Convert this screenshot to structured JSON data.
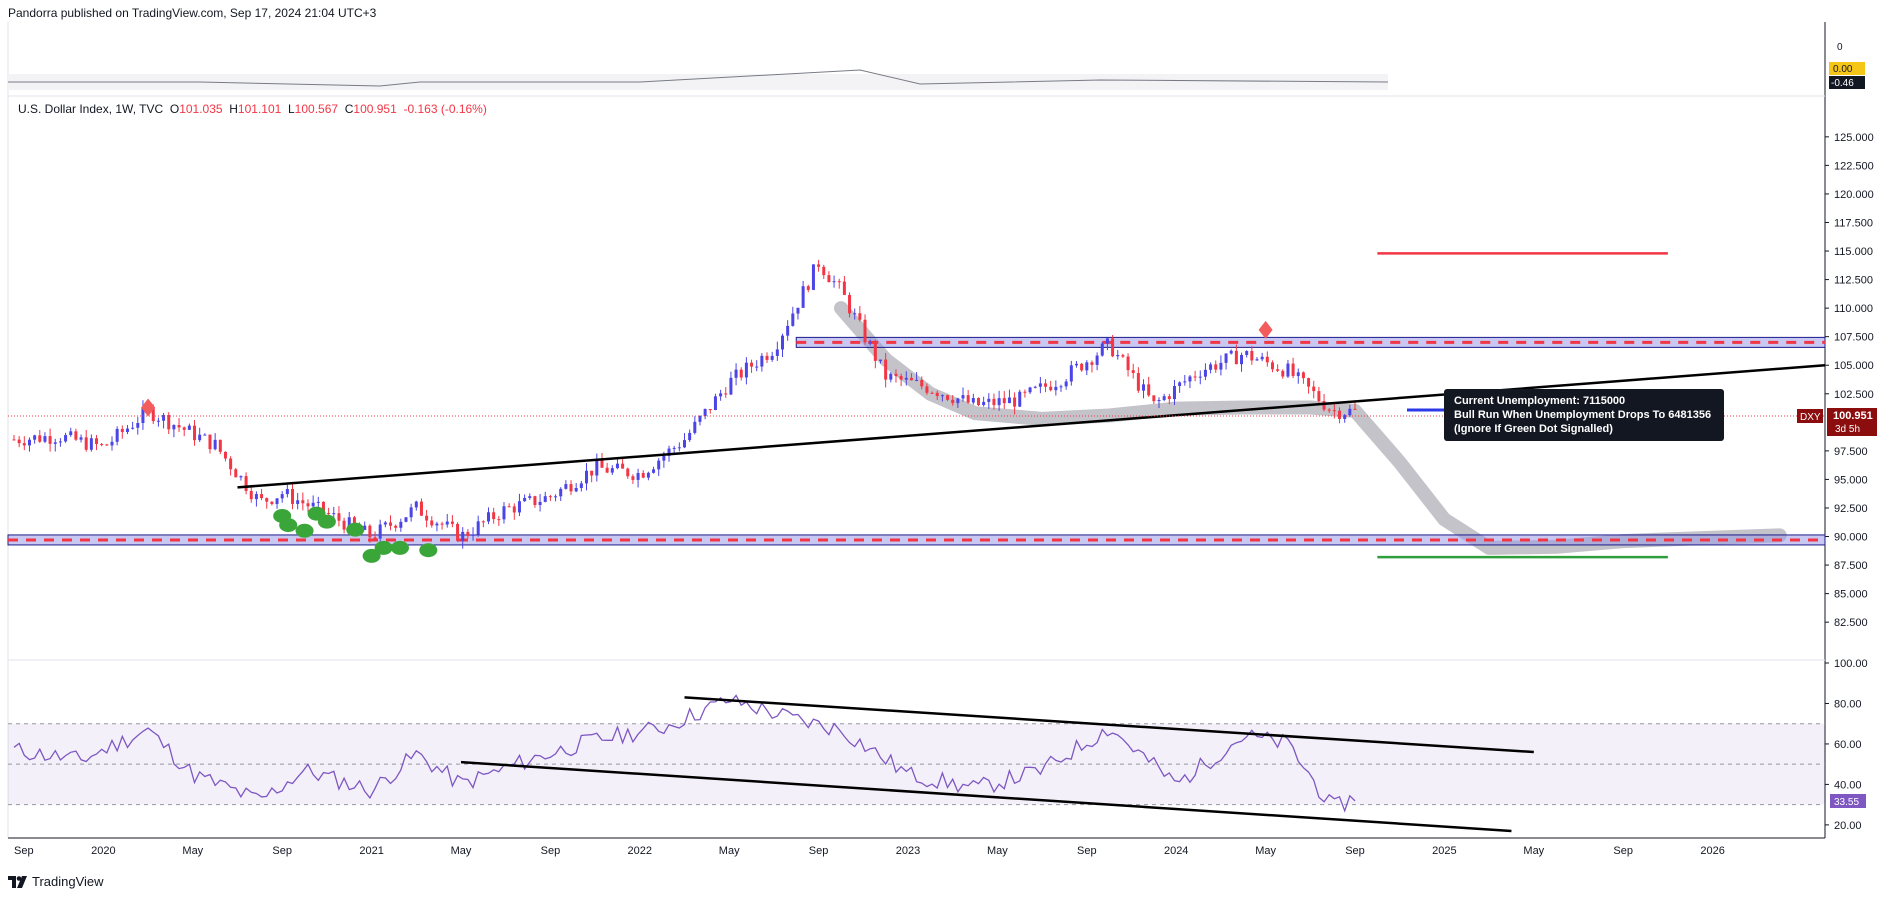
{
  "header": {
    "published": "Pandorra published on TradingView.com, Sep 17, 2024 21:04 UTC+3"
  },
  "symbol": {
    "name": "U.S. Dollar Index, 1W, TVC",
    "open_label": "O",
    "open": "101.035",
    "high_label": "H",
    "high": "101.101",
    "low_label": "L",
    "low": "100.567",
    "close_label": "C",
    "close": "100.951",
    "change": "-0.163 (-0.16%)"
  },
  "top_pane": {
    "axis_zero": "0",
    "badge_value": "0.00",
    "badge_value2": "-0.46"
  },
  "price_badge": {
    "ticker": "DXY",
    "price": "100.951",
    "countdown": "3d 5h"
  },
  "rsi_badge": "33.55",
  "annotation": [
    "Current Unemployment: 7115000",
    "Bull Run When Unemployment Drops To 6481356",
    "(Ignore If Green Dot Signalled)"
  ],
  "footer": {
    "brand": "TradingView"
  },
  "colors": {
    "bull": "#4b44e6",
    "bear": "#f23645",
    "rsi": "#7e57c2",
    "zone": "#9a9ae8",
    "projection": "#b8b8bf",
    "support_green": "#2e9e3a"
  },
  "chart_data": [
    {
      "type": "line",
      "title": "U.S. Dollar Index, 1W, TVC",
      "ylim": [
        80.5,
        127
      ],
      "yticks": [
        "125.000",
        "122.500",
        "120.000",
        "117.500",
        "115.000",
        "112.500",
        "110.000",
        "107.500",
        "105.000",
        "102.500",
        "97.500",
        "95.000",
        "92.500",
        "90.000",
        "87.500",
        "85.000",
        "82.500"
      ],
      "xticks": [
        "Sep",
        "2020",
        "May",
        "Sep",
        "2021",
        "May",
        "Sep",
        "2022",
        "May",
        "Sep",
        "2023",
        "May",
        "Sep",
        "2024",
        "May",
        "Sep",
        "2025",
        "May",
        "Sep",
        "2026"
      ],
      "series": [
        {
          "x": [
            "2019-09",
            "2019-11",
            "2020-01",
            "2020-03",
            "2020-04",
            "2020-06",
            "2020-08",
            "2020-09",
            "2020-11",
            "2021-01",
            "2021-03",
            "2021-05",
            "2021-07",
            "2021-09",
            "2021-11",
            "2022-01",
            "2022-03",
            "2022-05",
            "2022-07",
            "2022-09",
            "2022-10",
            "2022-12",
            "2023-02",
            "2023-04",
            "2023-06",
            "2023-08",
            "2023-10",
            "2023-12",
            "2024-02",
            "2024-04",
            "2024-06",
            "2024-08",
            "2024-09"
          ],
          "values": [
            98.5,
            98.8,
            97.8,
            101.0,
            100.0,
            98.0,
            93.0,
            93.8,
            92.0,
            90.0,
            92.5,
            90.0,
            92.4,
            93.5,
            96.0,
            95.5,
            98.5,
            103.5,
            106.5,
            114.0,
            111.5,
            104.0,
            103.0,
            101.5,
            102.0,
            104.0,
            106.8,
            101.5,
            104.5,
            106.0,
            104.5,
            101.0,
            100.951
          ]
        }
      ],
      "levels": {
        "red_target": 114.8,
        "zone_upper": 107.0,
        "zone_lower": 89.7,
        "green_target": 88.2,
        "last": 100.951
      }
    },
    {
      "type": "line",
      "title": "RSI",
      "ylim": [
        15,
        100
      ],
      "yticks": [
        "100.00",
        "80.00",
        "60.00",
        "40.00",
        "20.00"
      ],
      "bands": [
        30,
        50,
        70
      ],
      "series": [
        {
          "x": [
            "2019-09",
            "2019-12",
            "2020-03",
            "2020-05",
            "2020-08",
            "2020-10",
            "2021-01",
            "2021-03",
            "2021-05",
            "2021-08",
            "2021-11",
            "2022-02",
            "2022-05",
            "2022-08",
            "2022-10",
            "2023-01",
            "2023-04",
            "2023-07",
            "2023-10",
            "2024-01",
            "2024-04",
            "2024-06",
            "2024-08",
            "2024-09"
          ],
          "values": [
            57,
            52,
            67,
            45,
            32,
            47,
            37,
            55,
            40,
            52,
            62,
            68,
            82,
            72,
            67,
            45,
            38,
            47,
            68,
            40,
            64,
            60,
            28,
            33.55
          ]
        }
      ]
    }
  ]
}
